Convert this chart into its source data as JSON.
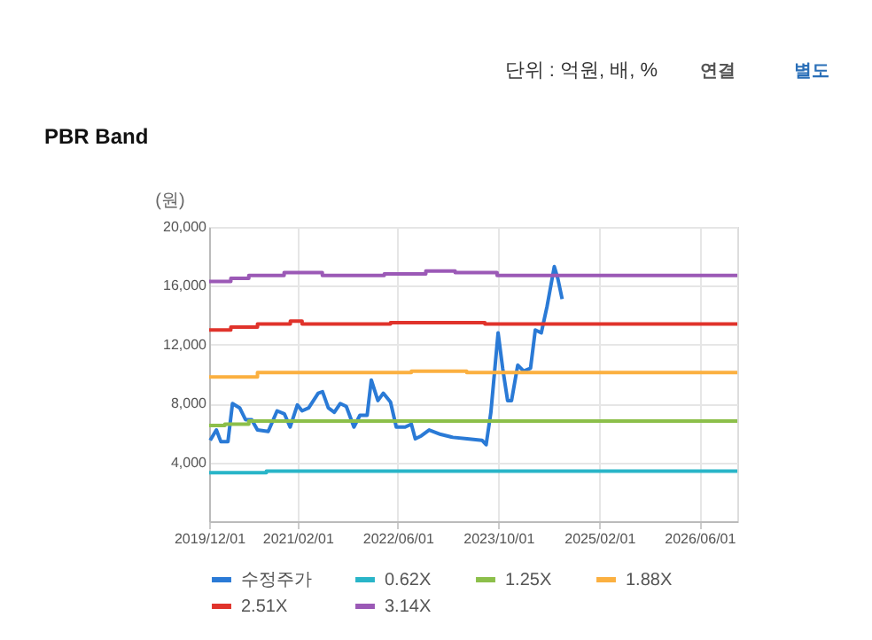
{
  "chart_data": {
    "type": "line",
    "title": "PBR Band",
    "ylabel": "(원)",
    "annotations": [
      "단위 : 억원, 배, %",
      "연결",
      "별도"
    ],
    "xlim": [
      "2019-12-01",
      "2026-12-01"
    ],
    "xticks": [
      {
        "value": "2019-12-01",
        "label": "2019/12/01"
      },
      {
        "value": "2021-02-01",
        "label": "2021/02/01"
      },
      {
        "value": "2022-06-01",
        "label": "2022/06/01"
      },
      {
        "value": "2023-10-01",
        "label": "2023/10/01"
      },
      {
        "value": "2025-02-01",
        "label": "2025/02/01"
      },
      {
        "value": "2026-06-01",
        "label": "2026/06/01"
      }
    ],
    "ylim": [
      0,
      20000
    ],
    "yticks": [
      {
        "value": 4000,
        "label": "4,000"
      },
      {
        "value": 8000,
        "label": "8,000"
      },
      {
        "value": 12000,
        "label": "12,000"
      },
      {
        "value": 16000,
        "label": "16,000"
      },
      {
        "value": 20000,
        "label": "20,000"
      }
    ],
    "grid": true,
    "legend": "bottom",
    "line_style": "solid",
    "marker": "none",
    "series": [
      {
        "name": "수정주가",
        "color": "#2a7ad6",
        "x": [
          "2019-12-06",
          "2020-01-05",
          "2020-01-27",
          "2020-03-01",
          "2020-03-23",
          "2020-04-27",
          "2020-05-25",
          "2020-06-24",
          "2020-07-22",
          "2020-09-12",
          "2020-10-25",
          "2020-11-29",
          "2020-12-27",
          "2021-01-31",
          "2021-02-23",
          "2021-03-27",
          "2021-05-12",
          "2021-06-02",
          "2021-06-30",
          "2021-07-29",
          "2021-08-27",
          "2021-09-25",
          "2021-11-01",
          "2021-11-30",
          "2022-01-04",
          "2022-01-24",
          "2022-02-25",
          "2022-03-23",
          "2022-04-27",
          "2022-05-25",
          "2022-07-07",
          "2022-08-06",
          "2022-08-25",
          "2022-09-23",
          "2022-10-31",
          "2022-12-26",
          "2023-02-23",
          "2023-05-03",
          "2023-07-14",
          "2023-08-03",
          "2023-08-26",
          "2023-09-30",
          "2023-10-22",
          "2023-11-15",
          "2023-12-04",
          "2024-01-03",
          "2024-02-01",
          "2024-03-05",
          "2024-03-28",
          "2024-04-26",
          "2024-05-24",
          "2024-06-28",
          "2024-07-15",
          "2024-08-05"
        ],
        "values": [
          5500,
          6200,
          5400,
          5400,
          8000,
          7700,
          6900,
          6900,
          6200,
          6100,
          7500,
          7300,
          6400,
          7900,
          7500,
          7700,
          8700,
          8800,
          7700,
          7400,
          8000,
          7800,
          6400,
          7200,
          7200,
          9600,
          8200,
          8700,
          8100,
          6400,
          6400,
          6600,
          5600,
          5800,
          6200,
          5900,
          5700,
          5600,
          5500,
          5200,
          7400,
          12800,
          10400,
          8200,
          8200,
          10600,
          10200,
          10400,
          13000,
          12800,
          14600,
          17300,
          16500,
          15100
        ]
      },
      {
        "name": "0.62X",
        "color": "#29b5c8",
        "type": "step",
        "x": [
          "2019-12-01",
          "2020-09-03",
          "2026-12-01"
        ],
        "values": [
          3300,
          3400,
          3400
        ]
      },
      {
        "name": "1.25X",
        "color": "#8cbf4a",
        "type": "step",
        "x": [
          "2019-12-01",
          "2020-02-15",
          "2020-06-10",
          "2023-03-06",
          "2026-12-01"
        ],
        "values": [
          6500,
          6600,
          6800,
          6800,
          6800
        ]
      },
      {
        "name": "1.88X",
        "color": "#fbb040",
        "type": "step",
        "x": [
          "2019-12-01",
          "2020-07-22",
          "2022-08-06",
          "2023-05-01",
          "2026-12-01"
        ],
        "values": [
          9800,
          10100,
          10200,
          10100,
          10100
        ]
      },
      {
        "name": "2.51X",
        "color": "#e0332b",
        "type": "step",
        "x": [
          "2019-12-01",
          "2020-03-15",
          "2020-07-22",
          "2020-12-28",
          "2021-02-23",
          "2022-04-27",
          "2023-07-28",
          "2026-12-01"
        ],
        "values": [
          13000,
          13200,
          13400,
          13600,
          13400,
          13500,
          13400,
          13400
        ]
      },
      {
        "name": "3.14X",
        "color": "#9b59b6",
        "type": "step",
        "x": [
          "2019-12-01",
          "2020-03-15",
          "2020-06-10",
          "2020-11-28",
          "2021-06-01",
          "2022-03-28",
          "2022-10-15",
          "2023-03-06",
          "2023-09-25",
          "2026-12-01"
        ],
        "values": [
          16300,
          16500,
          16700,
          16900,
          16700,
          16800,
          17000,
          16900,
          16700,
          16700
        ]
      }
    ]
  }
}
